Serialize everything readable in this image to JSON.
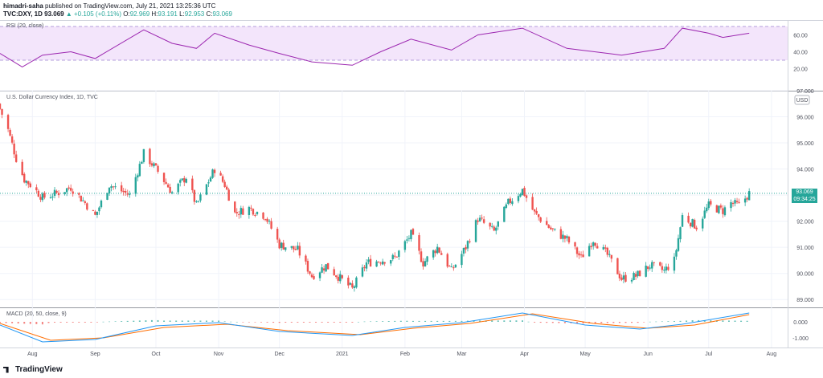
{
  "header": {
    "author": "himadri-saha",
    "published": "published on TradingView.com, July 21, 2021 13:25:36 UTC",
    "symbol": "TVC:DXY, 1D",
    "last": "93.069",
    "change_arrow": "▲",
    "change": "+0.105 (+0.11%)",
    "open": "92.969",
    "high": "93.191",
    "low": "92.953",
    "close": "93.069"
  },
  "rsi": {
    "label": "RSI (20, close)",
    "ticks": [
      "60.00",
      "40.00",
      "20.00"
    ],
    "band_upper": 70,
    "band_lower": 30,
    "color": "#9c27b0",
    "band_fill": "#f3e5fb"
  },
  "main": {
    "label": "U.S. Dollar Currency Index, 1D, TVC",
    "currency": "USD",
    "ticks": [
      "97.000",
      "96.000",
      "95.000",
      "94.000",
      "93.000",
      "92.000",
      "91.000",
      "90.000",
      "89.000"
    ],
    "price_tag": "93.069",
    "countdown": "09:34:25"
  },
  "macd": {
    "label": "MACD (20, 50, close, 9)",
    "ticks": [
      "0.000",
      "-1.000"
    ]
  },
  "x_axis": {
    "labels": [
      "Aug",
      "Sep",
      "Oct",
      "Nov",
      "Dec",
      "2021",
      "Feb",
      "Mar",
      "Apr",
      "May",
      "Jun",
      "Jul",
      "Aug"
    ]
  },
  "footer": {
    "brand": "TradingView"
  },
  "colors": {
    "up": "#26a69a",
    "down": "#ef5350",
    "macd_line": "#2196f3",
    "signal_line": "#ff6d00"
  },
  "chart_data": {
    "type": "candlestick",
    "title": "U.S. Dollar Currency Index, 1D, TVC",
    "ylim": [
      88.7,
      97.0
    ],
    "x_range": [
      "2020-07-16",
      "2021-08-07"
    ],
    "close_path": [
      {
        "x": "2020-07-16",
        "y": 96.3
      },
      {
        "x": "2020-07-20",
        "y": 95.5
      },
      {
        "x": "2020-07-24",
        "y": 94.4
      },
      {
        "x": "2020-07-28",
        "y": 93.6
      },
      {
        "x": "2020-07-31",
        "y": 93.4
      },
      {
        "x": "2020-08-06",
        "y": 92.9
      },
      {
        "x": "2020-08-14",
        "y": 93.1
      },
      {
        "x": "2020-08-20",
        "y": 93.3
      },
      {
        "x": "2020-08-27",
        "y": 92.7
      },
      {
        "x": "2020-09-01",
        "y": 92.2
      },
      {
        "x": "2020-09-08",
        "y": 93.4
      },
      {
        "x": "2020-09-18",
        "y": 93.0
      },
      {
        "x": "2020-09-25",
        "y": 94.6
      },
      {
        "x": "2020-10-02",
        "y": 93.9
      },
      {
        "x": "2020-10-09",
        "y": 93.1
      },
      {
        "x": "2020-10-16",
        "y": 93.7
      },
      {
        "x": "2020-10-21",
        "y": 92.6
      },
      {
        "x": "2020-10-30",
        "y": 94.0
      },
      {
        "x": "2020-11-04",
        "y": 93.4
      },
      {
        "x": "2020-11-09",
        "y": 92.3
      },
      {
        "x": "2020-11-16",
        "y": 92.5
      },
      {
        "x": "2020-11-24",
        "y": 92.2
      },
      {
        "x": "2020-12-01",
        "y": 91.1
      },
      {
        "x": "2020-12-10",
        "y": 90.9
      },
      {
        "x": "2020-12-17",
        "y": 89.9
      },
      {
        "x": "2020-12-24",
        "y": 90.3
      },
      {
        "x": "2021-01-06",
        "y": 89.4
      },
      {
        "x": "2021-01-13",
        "y": 90.4
      },
      {
        "x": "2021-01-20",
        "y": 90.5
      },
      {
        "x": "2021-01-27",
        "y": 90.6
      },
      {
        "x": "2021-02-04",
        "y": 91.5
      },
      {
        "x": "2021-02-10",
        "y": 90.4
      },
      {
        "x": "2021-02-17",
        "y": 91.0
      },
      {
        "x": "2021-02-24",
        "y": 90.1
      },
      {
        "x": "2021-03-03",
        "y": 91.0
      },
      {
        "x": "2021-03-09",
        "y": 92.1
      },
      {
        "x": "2021-03-17",
        "y": 91.6
      },
      {
        "x": "2021-03-24",
        "y": 92.7
      },
      {
        "x": "2021-03-31",
        "y": 93.2
      },
      {
        "x": "2021-04-06",
        "y": 92.3
      },
      {
        "x": "2021-04-14",
        "y": 91.7
      },
      {
        "x": "2021-04-22",
        "y": 91.3
      },
      {
        "x": "2021-04-29",
        "y": 90.6
      },
      {
        "x": "2021-05-05",
        "y": 91.3
      },
      {
        "x": "2021-05-12",
        "y": 90.7
      },
      {
        "x": "2021-05-19",
        "y": 89.8
      },
      {
        "x": "2021-05-26",
        "y": 89.9
      },
      {
        "x": "2021-06-02",
        "y": 90.3
      },
      {
        "x": "2021-06-09",
        "y": 90.1
      },
      {
        "x": "2021-06-14",
        "y": 90.5
      },
      {
        "x": "2021-06-18",
        "y": 92.2
      },
      {
        "x": "2021-06-25",
        "y": 91.8
      },
      {
        "x": "2021-07-01",
        "y": 92.6
      },
      {
        "x": "2021-07-08",
        "y": 92.4
      },
      {
        "x": "2021-07-12",
        "y": 92.7
      },
      {
        "x": "2021-07-16",
        "y": 92.6
      },
      {
        "x": "2021-07-21",
        "y": 93.07
      }
    ],
    "last_price": 93.069,
    "rsi_path": [
      {
        "x": "2020-07-16",
        "y": 38
      },
      {
        "x": "2020-07-27",
        "y": 22
      },
      {
        "x": "2020-08-06",
        "y": 36
      },
      {
        "x": "2020-08-20",
        "y": 40
      },
      {
        "x": "2020-09-01",
        "y": 32
      },
      {
        "x": "2020-09-25",
        "y": 66
      },
      {
        "x": "2020-10-09",
        "y": 50
      },
      {
        "x": "2020-10-21",
        "y": 44
      },
      {
        "x": "2020-10-30",
        "y": 62
      },
      {
        "x": "2020-11-16",
        "y": 48
      },
      {
        "x": "2020-12-01",
        "y": 38
      },
      {
        "x": "2020-12-17",
        "y": 28
      },
      {
        "x": "2021-01-06",
        "y": 24
      },
      {
        "x": "2021-01-20",
        "y": 40
      },
      {
        "x": "2021-02-04",
        "y": 55
      },
      {
        "x": "2021-02-24",
        "y": 42
      },
      {
        "x": "2021-03-09",
        "y": 60
      },
      {
        "x": "2021-03-31",
        "y": 68
      },
      {
        "x": "2021-04-22",
        "y": 44
      },
      {
        "x": "2021-05-19",
        "y": 36
      },
      {
        "x": "2021-06-09",
        "y": 44
      },
      {
        "x": "2021-06-18",
        "y": 68
      },
      {
        "x": "2021-07-01",
        "y": 62
      },
      {
        "x": "2021-07-08",
        "y": 57
      },
      {
        "x": "2021-07-21",
        "y": 62
      }
    ],
    "macd_path": [
      {
        "x": "2020-07-16",
        "y": -0.2
      },
      {
        "x": "2020-08-06",
        "y": -1.25
      },
      {
        "x": "2020-09-01",
        "y": -1.1
      },
      {
        "x": "2020-10-01",
        "y": -0.25
      },
      {
        "x": "2020-11-01",
        "y": -0.05
      },
      {
        "x": "2020-12-01",
        "y": -0.6
      },
      {
        "x": "2021-01-06",
        "y": -0.85
      },
      {
        "x": "2021-02-01",
        "y": -0.35
      },
      {
        "x": "2021-03-01",
        "y": -0.05
      },
      {
        "x": "2021-03-31",
        "y": 0.55
      },
      {
        "x": "2021-05-01",
        "y": -0.2
      },
      {
        "x": "2021-05-28",
        "y": -0.45
      },
      {
        "x": "2021-06-18",
        "y": -0.15
      },
      {
        "x": "2021-07-21",
        "y": 0.55
      }
    ],
    "signal_path": [
      {
        "x": "2020-07-16",
        "y": -0.1
      },
      {
        "x": "2020-08-10",
        "y": -1.15
      },
      {
        "x": "2020-09-05",
        "y": -1.0
      },
      {
        "x": "2020-10-05",
        "y": -0.35
      },
      {
        "x": "2020-11-05",
        "y": -0.15
      },
      {
        "x": "2020-12-05",
        "y": -0.55
      },
      {
        "x": "2021-01-10",
        "y": -0.8
      },
      {
        "x": "2021-02-05",
        "y": -0.4
      },
      {
        "x": "2021-03-05",
        "y": -0.1
      },
      {
        "x": "2021-04-05",
        "y": 0.5
      },
      {
        "x": "2021-05-05",
        "y": -0.1
      },
      {
        "x": "2021-06-01",
        "y": -0.4
      },
      {
        "x": "2021-06-24",
        "y": -0.2
      },
      {
        "x": "2021-07-21",
        "y": 0.45
      }
    ]
  }
}
